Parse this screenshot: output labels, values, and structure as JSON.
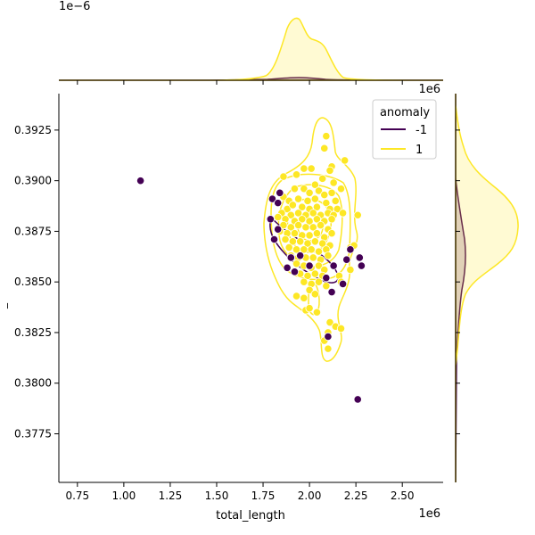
{
  "chart_data": {
    "type": "scatter",
    "title": "",
    "xlabel": "total_length",
    "ylabel": "_",
    "x_offset_text": "1e6",
    "y_offset_text": "1e6",
    "top_marginal_offset_text": "1e−6",
    "xlim": [
      0.65,
      2.72
    ],
    "ylim": [
      0.3751,
      0.3943
    ],
    "xticks": [
      0.75,
      1.0,
      1.25,
      1.5,
      1.75,
      2.0,
      2.25,
      2.5
    ],
    "xtick_labels": [
      "0.75",
      "1.00",
      "1.25",
      "1.50",
      "1.75",
      "2.00",
      "2.25",
      "2.50"
    ],
    "yticks": [
      0.3775,
      0.38,
      0.3825,
      0.385,
      0.3875,
      0.39,
      0.3925
    ],
    "ytick_labels": [
      "0.3775",
      "0.3800",
      "0.3825",
      "0.3850",
      "0.3875",
      "0.3900",
      "0.3925"
    ],
    "legend": {
      "title": "anomaly",
      "placement": "top-right",
      "entries": [
        {
          "label": "-1",
          "color": "#440154"
        },
        {
          "label": "1",
          "color": "#fde725"
        }
      ]
    },
    "marginals": {
      "top": "kde",
      "right": "kde"
    },
    "series": [
      {
        "name": "-1",
        "color": "#440154",
        "points": [
          [
            1.09,
            0.39
          ],
          [
            2.26,
            0.3792
          ],
          [
            1.8,
            0.3891
          ],
          [
            1.83,
            0.3889
          ],
          [
            1.84,
            0.3894
          ],
          [
            1.79,
            0.3881
          ],
          [
            1.83,
            0.3876
          ],
          [
            1.81,
            0.3871
          ],
          [
            1.9,
            0.3862
          ],
          [
            1.88,
            0.3857
          ],
          [
            1.92,
            0.3855
          ],
          [
            2.0,
            0.3858
          ],
          [
            2.09,
            0.3852
          ],
          [
            2.12,
            0.3845
          ],
          [
            2.13,
            0.3858
          ],
          [
            2.18,
            0.3849
          ],
          [
            2.22,
            0.3866
          ],
          [
            2.2,
            0.3861
          ],
          [
            2.27,
            0.3862
          ],
          [
            2.28,
            0.3858
          ],
          [
            2.1,
            0.3823
          ],
          [
            1.95,
            0.3863
          ]
        ]
      },
      {
        "name": "1",
        "color": "#fde725",
        "points": [
          [
            2.09,
            0.3922
          ],
          [
            2.08,
            0.3916
          ],
          [
            2.19,
            0.391
          ],
          [
            2.12,
            0.3907
          ],
          [
            1.93,
            0.3903
          ],
          [
            1.97,
            0.3906
          ],
          [
            2.01,
            0.3906
          ],
          [
            2.11,
            0.3905
          ],
          [
            2.07,
            0.3901
          ],
          [
            1.86,
            0.3902
          ],
          [
            2.13,
            0.3899
          ],
          [
            2.03,
            0.3898
          ],
          [
            1.92,
            0.3896
          ],
          [
            1.97,
            0.3896
          ],
          [
            2.0,
            0.3894
          ],
          [
            2.05,
            0.3895
          ],
          [
            2.08,
            0.3893
          ],
          [
            2.12,
            0.3894
          ],
          [
            2.17,
            0.3896
          ],
          [
            1.86,
            0.3892
          ],
          [
            1.89,
            0.389
          ],
          [
            1.94,
            0.3891
          ],
          [
            1.99,
            0.389
          ],
          [
            2.03,
            0.3891
          ],
          [
            2.09,
            0.3889
          ],
          [
            2.14,
            0.389
          ],
          [
            1.88,
            0.3886
          ],
          [
            1.91,
            0.3888
          ],
          [
            1.96,
            0.3887
          ],
          [
            2.0,
            0.3886
          ],
          [
            2.04,
            0.3887
          ],
          [
            2.11,
            0.3886
          ],
          [
            2.15,
            0.3886
          ],
          [
            1.85,
            0.3884
          ],
          [
            1.9,
            0.3883
          ],
          [
            1.94,
            0.3884
          ],
          [
            1.98,
            0.3883
          ],
          [
            2.02,
            0.3884
          ],
          [
            2.06,
            0.3883
          ],
          [
            2.1,
            0.3884
          ],
          [
            2.13,
            0.3883
          ],
          [
            2.18,
            0.3884
          ],
          [
            1.83,
            0.3882
          ],
          [
            1.87,
            0.3881
          ],
          [
            1.92,
            0.388
          ],
          [
            1.96,
            0.3881
          ],
          [
            2.0,
            0.388
          ],
          [
            2.04,
            0.3881
          ],
          [
            2.08,
            0.388
          ],
          [
            2.12,
            0.3881
          ],
          [
            1.86,
            0.3878
          ],
          [
            1.9,
            0.3877
          ],
          [
            1.94,
            0.3878
          ],
          [
            1.98,
            0.3877
          ],
          [
            2.02,
            0.3877
          ],
          [
            2.06,
            0.3878
          ],
          [
            2.1,
            0.3876
          ],
          [
            1.84,
            0.3875
          ],
          [
            1.88,
            0.3874
          ],
          [
            1.92,
            0.3874
          ],
          [
            1.96,
            0.3873
          ],
          [
            2.0,
            0.3873
          ],
          [
            2.04,
            0.3874
          ],
          [
            2.08,
            0.3872
          ],
          [
            2.12,
            0.3874
          ],
          [
            1.87,
            0.3871
          ],
          [
            1.91,
            0.387
          ],
          [
            1.95,
            0.387
          ],
          [
            1.99,
            0.3869
          ],
          [
            2.03,
            0.387
          ],
          [
            2.07,
            0.3869
          ],
          [
            2.11,
            0.3868
          ],
          [
            1.89,
            0.3867
          ],
          [
            1.93,
            0.3866
          ],
          [
            1.97,
            0.3866
          ],
          [
            2.01,
            0.3866
          ],
          [
            2.05,
            0.3865
          ],
          [
            2.09,
            0.3866
          ],
          [
            1.9,
            0.3863
          ],
          [
            1.94,
            0.3862
          ],
          [
            1.98,
            0.3862
          ],
          [
            2.02,
            0.3862
          ],
          [
            2.06,
            0.3861
          ],
          [
            2.1,
            0.3863
          ],
          [
            1.93,
            0.3859
          ],
          [
            1.97,
            0.3858
          ],
          [
            2.01,
            0.3857
          ],
          [
            2.05,
            0.3858
          ],
          [
            2.08,
            0.3856
          ],
          [
            1.95,
            0.3854
          ],
          [
            1.99,
            0.3853
          ],
          [
            2.03,
            0.3854
          ],
          [
            2.07,
            0.3853
          ],
          [
            1.97,
            0.385
          ],
          [
            2.01,
            0.3849
          ],
          [
            2.05,
            0.385
          ],
          [
            2.09,
            0.3848
          ],
          [
            2.16,
            0.3853
          ],
          [
            2.17,
            0.385
          ],
          [
            2.22,
            0.3867
          ],
          [
            2.24,
            0.3868
          ],
          [
            2.26,
            0.3883
          ],
          [
            2.22,
            0.3856
          ],
          [
            1.93,
            0.3843
          ],
          [
            1.97,
            0.3842
          ],
          [
            2.0,
            0.3846
          ],
          [
            2.03,
            0.3844
          ],
          [
            1.98,
            0.3836
          ],
          [
            2.0,
            0.3837
          ],
          [
            2.04,
            0.3835
          ],
          [
            2.11,
            0.383
          ],
          [
            2.1,
            0.3825
          ],
          [
            2.14,
            0.3828
          ],
          [
            2.17,
            0.3827
          ],
          [
            2.08,
            0.3821
          ],
          [
            2.1,
            0.3817
          ]
        ]
      }
    ]
  }
}
